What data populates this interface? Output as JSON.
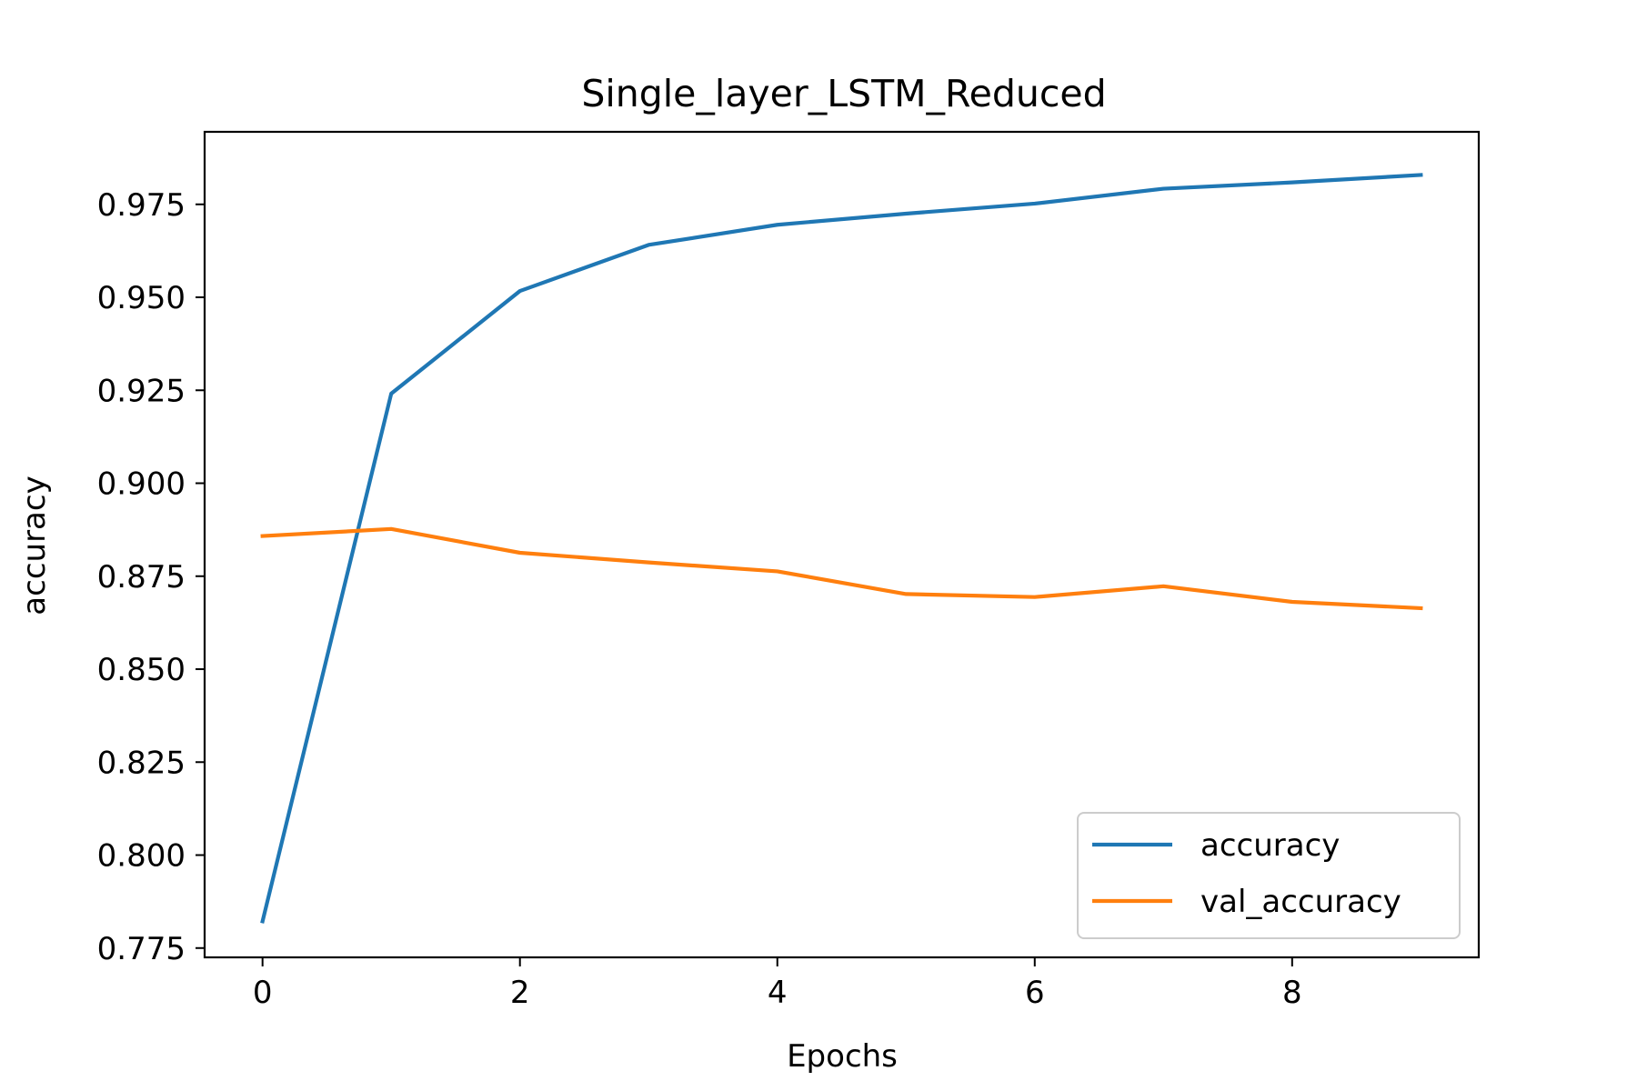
{
  "chart_data": {
    "type": "line",
    "title": "Single_layer_LSTM_Reduced",
    "xlabel": "Epochs",
    "ylabel": "accuracy",
    "x": [
      0,
      1,
      2,
      3,
      4,
      5,
      6,
      7,
      8,
      9
    ],
    "xlim": [
      -0.45,
      9.45
    ],
    "ylim": [
      0.7725,
      0.9945
    ],
    "xticks": [
      0,
      2,
      4,
      6,
      8
    ],
    "xtick_labels": [
      "0",
      "2",
      "4",
      "6",
      "8"
    ],
    "yticks": [
      0.775,
      0.8,
      0.825,
      0.85,
      0.875,
      0.9,
      0.925,
      0.95,
      0.975
    ],
    "ytick_labels": [
      "0.775",
      "0.800",
      "0.825",
      "0.850",
      "0.875",
      "0.900",
      "0.925",
      "0.950",
      "0.975"
    ],
    "grid": false,
    "legend_position": "bottom-right",
    "series": [
      {
        "name": "accuracy",
        "color": "#1f77b4",
        "values": [
          0.7822,
          0.9241,
          0.9517,
          0.9641,
          0.9695,
          0.9725,
          0.9752,
          0.9792,
          0.9809,
          0.9829
        ]
      },
      {
        "name": "val_accuracy",
        "color": "#ff7f0e",
        "values": [
          0.8858,
          0.8877,
          0.8813,
          0.8787,
          0.8763,
          0.8702,
          0.8694,
          0.8723,
          0.8681,
          0.8664
        ]
      }
    ]
  }
}
